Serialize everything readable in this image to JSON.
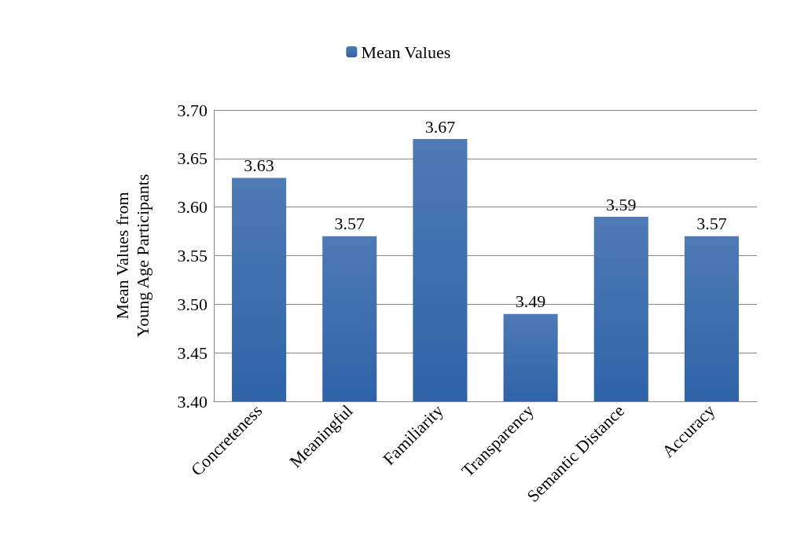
{
  "chart_data": {
    "type": "bar",
    "ylabel": "Mean Values from\nYoung Age Participants",
    "categories": [
      "Concreteness",
      "Meaningful",
      "Familiarity",
      "Transparency",
      "Semantic Distance",
      "Accuracy"
    ],
    "series": [
      {
        "name": "Mean Values",
        "color": "#2f63a8",
        "values": [
          3.63,
          3.57,
          3.67,
          3.49,
          3.59,
          3.57
        ]
      }
    ],
    "ylim": [
      3.4,
      3.7
    ],
    "yticks": [
      {
        "value": 3.4,
        "label": "3.40"
      },
      3.45,
      {
        "value": 3.5,
        "label": "3.50"
      },
      3.55,
      {
        "value": 3.6,
        "label": "3.60"
      },
      3.65,
      {
        "value": 3.7,
        "label": "3.70"
      }
    ],
    "grid": "y",
    "legend": "top",
    "data_labels": true
  }
}
